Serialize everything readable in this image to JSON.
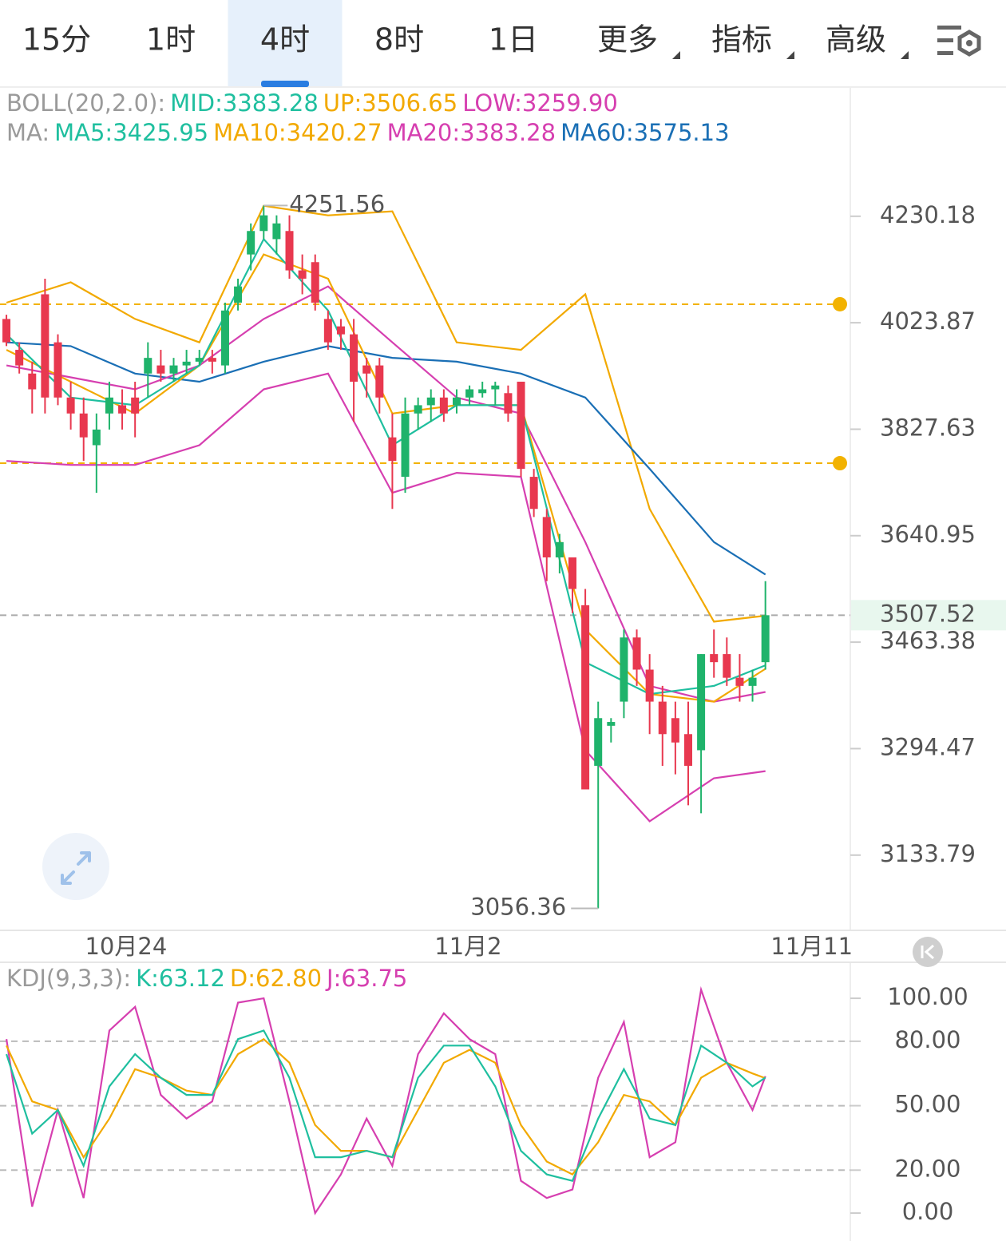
{
  "tabs": [
    "15分",
    "1时",
    "4时",
    "8时",
    "1日",
    "更多",
    "指标",
    "高级"
  ],
  "active_tab": 2,
  "chart_data": [
    {
      "type": "candlestick",
      "legend": [
        [
          {
            "text": "BOLL(20,2.0):",
            "color": "#9a9a9a"
          },
          {
            "text": "MID:3383.28",
            "color": "#1fbf9f"
          },
          {
            "text": "UP:3506.65",
            "color": "#f2a900"
          },
          {
            "text": "LOW:3259.90",
            "color": "#d63fb0"
          }
        ],
        [
          {
            "text": "MA:",
            "color": "#9a9a9a"
          },
          {
            "text": "MA5:3425.95",
            "color": "#1fbf9f"
          },
          {
            "text": "MA10:3420.27",
            "color": "#f2a900"
          },
          {
            "text": "MA20:3383.28",
            "color": "#d63fb0"
          },
          {
            "text": "MA60:3575.13",
            "color": "#1a6fb5"
          }
        ]
      ],
      "open": [
        4031,
        3973,
        3929,
        4078,
        3987,
        3885,
        3856,
        3799,
        3856,
        3871,
        3885,
        3929,
        3944,
        3929,
        3944,
        3951,
        3958,
        3944,
        4062,
        4155,
        4201,
        4185,
        4201,
        4124,
        4140,
        4031,
        4017,
        4002,
        3944,
        3944,
        3813,
        3743,
        3856,
        3871,
        3885,
        3871,
        3885,
        3893,
        3900,
        3893,
        3914,
        3743,
        3673,
        3604,
        3604,
        3524,
        3268,
        3330,
        3368,
        3471,
        3419,
        3368,
        3342,
        3317,
        3292,
        3444,
        3444,
        3406,
        3393,
        3431
      ],
      "high": [
        4039,
        3987,
        3951,
        4108,
        4002,
        3914,
        3885,
        3856,
        3914,
        3900,
        3914,
        3987,
        3973,
        3958,
        3973,
        3973,
        3973,
        4062,
        4108,
        4216,
        4251.56,
        4232,
        4232,
        4155,
        4155,
        4047,
        4031,
        4031,
        3958,
        3958,
        3856,
        3885,
        3885,
        3900,
        3900,
        3900,
        3907,
        3914,
        3914,
        3907,
        3914,
        3757,
        3687,
        3644,
        3604,
        3551,
        3368,
        3342,
        3484,
        3484,
        3444,
        3393,
        3368,
        3368,
        3444,
        3484,
        3471,
        3444,
        3419,
        3564
      ],
      "low": [
        3980,
        3929,
        3856,
        3856,
        3871,
        3827,
        3771,
        3715,
        3827,
        3827,
        3813,
        3885,
        3914,
        3914,
        3929,
        3944,
        3929,
        3929,
        4047,
        4124,
        4185,
        4155,
        4108,
        4078,
        4047,
        3973,
        3973,
        3841,
        3885,
        3856,
        3687,
        3715,
        3827,
        3841,
        3841,
        3856,
        3871,
        3885,
        3871,
        3841,
        3743,
        3673,
        3564,
        3577,
        3511,
        3232,
        3056.36,
        3304,
        3342,
        3393,
        3317,
        3268,
        3255,
        3208,
        3196,
        3406,
        3393,
        3368,
        3368,
        3419
      ],
      "close": [
        3987,
        3944,
        3900,
        3885,
        3885,
        3856,
        3813,
        3827,
        3885,
        3856,
        3856,
        3958,
        3929,
        3944,
        3951,
        3958,
        3951,
        4047,
        4093,
        4201,
        4232,
        4216,
        4124,
        4108,
        4062,
        3987,
        4002,
        3914,
        3929,
        3885,
        3771,
        3856,
        3871,
        3885,
        3856,
        3885,
        3900,
        3900,
        3907,
        3856,
        3757,
        3687,
        3604,
        3630,
        3551,
        3232,
        3342,
        3336,
        3471,
        3419,
        3368,
        3317,
        3304,
        3268,
        3444,
        3431,
        3406,
        3393,
        3406,
        3507.52
      ],
      "up_color": "#1fb36b",
      "down_color": "#e8384f",
      "line_x": [
        0,
        5,
        10,
        15,
        20,
        25,
        30,
        35,
        40,
        45,
        50,
        55,
        59
      ],
      "series": [
        {
          "color": "#f2a900",
          "values": [
            4062,
            4101,
            4031,
            3987,
            4251,
            4232,
            4240,
            3987,
            3973,
            4078,
            3687,
            3497,
            3506.65
          ]
        },
        {
          "color": "#d63fb0",
          "values": [
            3771,
            3764,
            3764,
            3799,
            3900,
            3929,
            3715,
            3750,
            3743,
            3292,
            3184,
            3249,
            3259.9
          ]
        },
        {
          "color": "#1a6fb5",
          "values": [
            3987,
            3980,
            3929,
            3914,
            3951,
            3980,
            3958,
            3951,
            3929,
            3885,
            3757,
            3630,
            3575.13
          ]
        },
        {
          "color": "#d63fb0",
          "values": [
            3944,
            3922,
            3900,
            3944,
            4031,
            4093,
            3987,
            3885,
            3856,
            3630,
            3393,
            3368,
            3383.28
          ]
        },
        {
          "color": "#f2a900",
          "values": [
            3973,
            3914,
            3856,
            3944,
            4155,
            4108,
            3856,
            3871,
            3871,
            3484,
            3380,
            3368,
            3420.27
          ]
        },
        {
          "color": "#1fbf9f",
          "values": [
            4002,
            3885,
            3871,
            3944,
            4185,
            4047,
            3799,
            3871,
            3871,
            3431,
            3380,
            3393,
            3425.95
          ]
        }
      ],
      "levels": [
        4059,
        3767
      ],
      "level_color": "#f2b200",
      "xlim": [
        -0.5,
        65.6
      ],
      "xticks": [
        {
          "value": 9.3,
          "label": "10月24"
        },
        {
          "value": 35.9,
          "label": "11月2"
        },
        {
          "value": 62.6,
          "label": "11月11"
        }
      ],
      "ylim": [
        3025,
        4344
      ],
      "log": true,
      "yticks": [
        4230.18,
        4023.87,
        3827.63,
        3640.95,
        3463.38,
        3294.47,
        3133.79
      ]
    },
    {
      "type": "line",
      "legend": [
        [
          {
            "text": "KDJ(9,3,3):",
            "color": "#9a9a9a"
          },
          {
            "text": "K:63.12",
            "color": "#1fbf9f"
          },
          {
            "text": "D:62.80",
            "color": "#f2a900"
          },
          {
            "text": "J:63.75",
            "color": "#d63fb0"
          }
        ]
      ],
      "x": [
        0,
        2,
        4,
        6,
        8,
        10,
        12,
        14,
        16,
        18,
        20,
        22,
        24,
        26,
        28,
        30,
        32,
        34,
        36,
        38,
        40,
        42,
        44,
        46,
        48,
        50,
        52,
        54,
        56,
        58,
        59
      ],
      "series": [
        {
          "color": "#d63fb0",
          "values": [
            81,
            3,
            48,
            7,
            85,
            96,
            55,
            44,
            52,
            98,
            100,
            52,
            0,
            18,
            44,
            22,
            74,
            93,
            81,
            74,
            15,
            7,
            11,
            63,
            89,
            26,
            33,
            104,
            70,
            48,
            63.75
          ]
        },
        {
          "color": "#f2a900",
          "values": [
            78,
            52,
            48,
            26,
            44,
            67,
            63,
            57,
            55,
            74,
            81,
            70,
            41,
            29,
            29,
            26,
            48,
            70,
            76,
            70,
            41,
            24,
            18,
            33,
            55,
            52,
            41,
            63,
            70,
            65,
            62.8
          ]
        },
        {
          "color": "#1fbf9f",
          "values": [
            74,
            37,
            48,
            22,
            59,
            74,
            63,
            55,
            55,
            81,
            85,
            63,
            26,
            26,
            29,
            26,
            63,
            78,
            78,
            59,
            29,
            18,
            15,
            44,
            67,
            44,
            41,
            78,
            70,
            59,
            63.12
          ]
        }
      ],
      "ylim": [
        -11.5,
        114.9
      ],
      "yticks": [
        {
          "value": 100,
          "label": "100.00"
        },
        {
          "value": 80,
          "label": "80.00"
        },
        {
          "value": 50,
          "label": "50.00"
        },
        {
          "value": 20,
          "label": "20.00"
        },
        {
          "value": 0,
          "label": "0.00"
        }
      ]
    }
  ]
}
